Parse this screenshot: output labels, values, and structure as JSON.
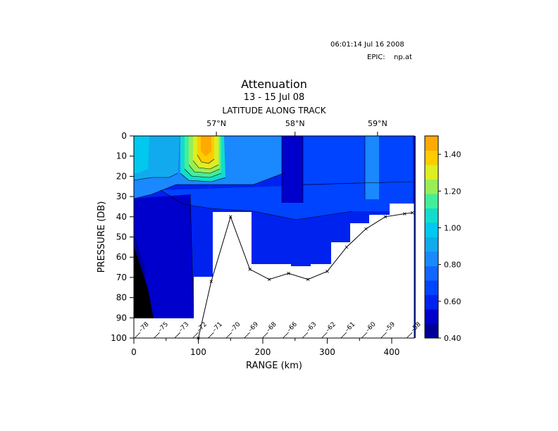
{
  "header": {
    "timestamp": "06:01:14 Jul 16 2008",
    "epic_label": "EPIC:",
    "epic_file": "np.at"
  },
  "chart_data": {
    "type": "heatmap",
    "title": "Attenuation",
    "subtitle": "13 - 15 Jul 08",
    "top_axis_label": "LATITUDE ALONG TRACK",
    "top_ticks": [
      {
        "label": "57°N",
        "x": 128
      },
      {
        "label": "58°N",
        "x": 250
      },
      {
        "label": "59°N",
        "x": 378
      }
    ],
    "xlabel": "RANGE (km)",
    "ylabel": "PRESSURE (DB)",
    "xlim": [
      0,
      435
    ],
    "ylim": [
      0,
      100
    ],
    "x_ticks": [
      0,
      100,
      200,
      300,
      400
    ],
    "y_ticks": [
      0,
      10,
      20,
      30,
      40,
      50,
      60,
      70,
      80,
      90,
      100
    ],
    "colorbar": {
      "range": [
        0.4,
        1.5
      ],
      "tick_labels": [
        "1.40",
        "1.20",
        "1.00",
        "0.80",
        "0.60",
        "0.40"
      ],
      "tick_values": [
        1.4,
        1.2,
        1.0,
        0.8,
        0.6,
        0.4
      ],
      "colors": [
        "#000099",
        "#0000cc",
        "#0022ee",
        "#0044ff",
        "#1166ff",
        "#1a88ff",
        "#11aaee",
        "#00c8ee",
        "#11ddcc",
        "#44ee99",
        "#99ee55",
        "#ddee22",
        "#ffcc00",
        "#ffaa00"
      ]
    },
    "stations": [
      {
        "label": "78",
        "range": 10
      },
      {
        "label": "75",
        "range": 40
      },
      {
        "label": "73",
        "range": 72
      },
      {
        "label": "72",
        "range": 100
      },
      {
        "label": "71",
        "range": 124
      },
      {
        "label": "70",
        "range": 152
      },
      {
        "label": "69",
        "range": 180
      },
      {
        "label": "68",
        "range": 208
      },
      {
        "label": "66",
        "range": 240
      },
      {
        "label": "63",
        "range": 270
      },
      {
        "label": "62",
        "range": 300
      },
      {
        "label": "61",
        "range": 330
      },
      {
        "label": "60",
        "range": 362
      },
      {
        "label": "59",
        "range": 392
      },
      {
        "label": "58",
        "range": 432
      }
    ],
    "bottom_depth_line": {
      "x": [
        100,
        120,
        150,
        180,
        210,
        240,
        270,
        300,
        330,
        360,
        390,
        420,
        432
      ],
      "y": [
        100,
        72,
        40,
        66,
        71,
        68,
        71,
        67,
        55,
        46,
        40,
        38.5,
        38
      ]
    }
  }
}
